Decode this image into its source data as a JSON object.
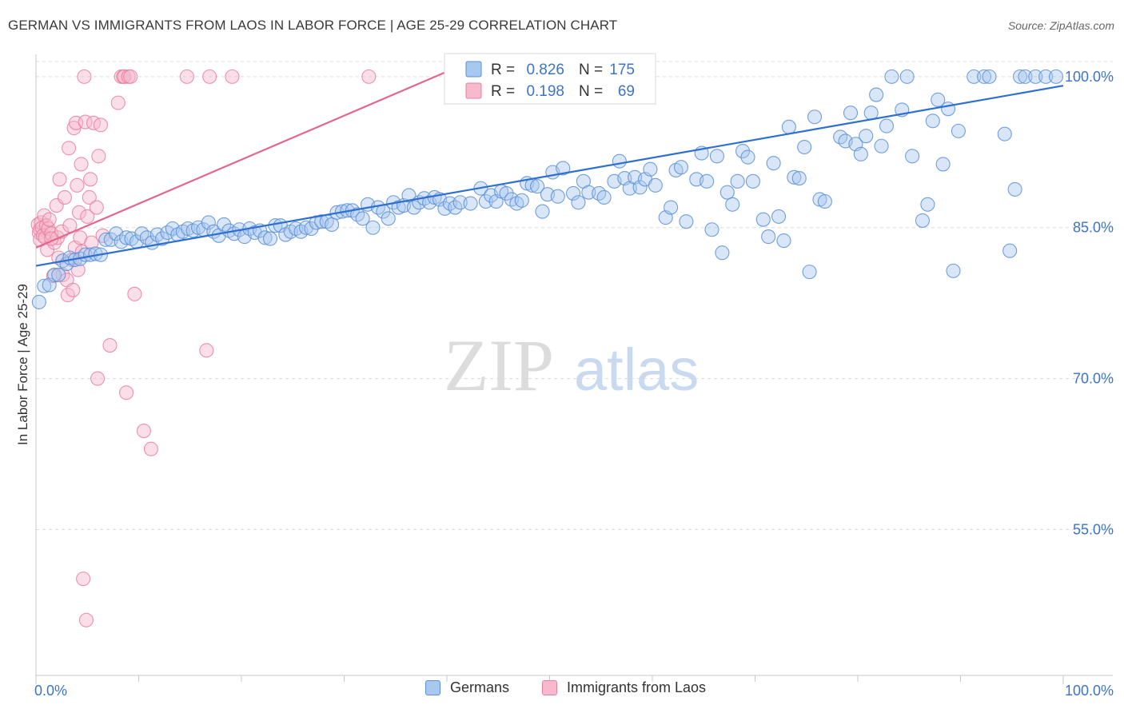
{
  "title": "GERMAN VS IMMIGRANTS FROM LAOS IN LABOR FORCE | AGE 25-29 CORRELATION CHART",
  "source": "Source: ZipAtlas.com",
  "watermark": {
    "zip": "ZIP",
    "atlas": "atlas"
  },
  "colors": {
    "blue_fill": "#a9c8f0",
    "blue_stroke": "#5b8fd6",
    "blue_line": "#2f6fd0",
    "pink_fill": "#f7b9cc",
    "pink_stroke": "#e97fa0",
    "pink_line": "#e2668e",
    "axis_text": "#3d74c9",
    "grid": "#dcdcdc"
  },
  "legend_stats": [
    {
      "r_label": "R =",
      "r_value": "0.826",
      "n_label": "N =",
      "n_value": "175",
      "color": "blue"
    },
    {
      "r_label": "R =",
      "r_value": "0.198",
      "n_label": "N =",
      "n_value": "69",
      "color": "pink"
    }
  ],
  "legend_bottom": [
    "Germans",
    "Immigrants from Laos"
  ],
  "chart_data": {
    "type": "scatter",
    "xlabel": "",
    "ylabel": "In Labor Force | Age 25-29",
    "x_tick_labels": [
      "0.0%",
      "100.0%"
    ],
    "y_tick_labels": [
      "100.0%",
      "85.0%",
      "70.0%",
      "55.0%"
    ],
    "y_ticks": [
      100,
      85,
      70,
      55
    ],
    "xlim": [
      0,
      100
    ],
    "ylim": [
      40.5,
      101.5
    ],
    "grid": true,
    "series": [
      {
        "name": "Germans",
        "color": "blue",
        "trend": {
          "x": [
            0,
            100
          ],
          "y": [
            81.2,
            99.1
          ]
        },
        "points": [
          [
            0.3,
            77.6
          ],
          [
            0.8,
            79.2
          ],
          [
            1.3,
            79.3
          ],
          [
            1.8,
            80.3
          ],
          [
            2.2,
            80.3
          ],
          [
            2.6,
            81.7
          ],
          [
            3.0,
            81.4
          ],
          [
            3.3,
            82.0
          ],
          [
            3.8,
            81.8
          ],
          [
            4.3,
            81.9
          ],
          [
            4.8,
            82.3
          ],
          [
            5.3,
            82.3
          ],
          [
            5.8,
            82.4
          ],
          [
            6.3,
            82.3
          ],
          [
            6.8,
            83.8
          ],
          [
            7.3,
            83.8
          ],
          [
            7.8,
            84.4
          ],
          [
            8.3,
            83.6
          ],
          [
            8.8,
            84.0
          ],
          [
            9.3,
            83.9
          ],
          [
            9.8,
            83.6
          ],
          [
            10.3,
            84.4
          ],
          [
            10.8,
            84.0
          ],
          [
            11.3,
            83.5
          ],
          [
            11.8,
            84.3
          ],
          [
            12.3,
            83.9
          ],
          [
            12.8,
            84.5
          ],
          [
            13.3,
            84.9
          ],
          [
            13.8,
            84.3
          ],
          [
            14.3,
            84.6
          ],
          [
            14.8,
            84.9
          ],
          [
            15.3,
            84.7
          ],
          [
            15.8,
            85.0
          ],
          [
            16.3,
            84.8
          ],
          [
            16.8,
            85.5
          ],
          [
            17.3,
            84.6
          ],
          [
            17.8,
            84.2
          ],
          [
            18.3,
            85.3
          ],
          [
            18.8,
            84.7
          ],
          [
            19.3,
            84.4
          ],
          [
            19.8,
            84.8
          ],
          [
            20.3,
            84.1
          ],
          [
            20.8,
            84.9
          ],
          [
            21.3,
            84.5
          ],
          [
            21.8,
            84.7
          ],
          [
            22.3,
            84.0
          ],
          [
            22.8,
            83.9
          ],
          [
            23.3,
            85.2
          ],
          [
            23.8,
            85.2
          ],
          [
            24.3,
            84.3
          ],
          [
            24.8,
            84.6
          ],
          [
            25.3,
            84.9
          ],
          [
            25.8,
            84.6
          ],
          [
            26.3,
            85.0
          ],
          [
            26.8,
            84.9
          ],
          [
            27.3,
            85.5
          ],
          [
            27.8,
            85.6
          ],
          [
            28.3,
            85.6
          ],
          [
            28.8,
            85.3
          ],
          [
            29.3,
            86.5
          ],
          [
            29.8,
            86.6
          ],
          [
            30.3,
            86.7
          ],
          [
            30.8,
            86.7
          ],
          [
            31.3,
            86.3
          ],
          [
            31.8,
            85.9
          ],
          [
            32.3,
            87.3
          ],
          [
            32.8,
            85.0
          ],
          [
            33.3,
            87.0
          ],
          [
            33.8,
            86.6
          ],
          [
            34.3,
            85.9
          ],
          [
            34.8,
            87.5
          ],
          [
            35.3,
            87.0
          ],
          [
            35.8,
            87.2
          ],
          [
            36.3,
            88.2
          ],
          [
            36.8,
            87.0
          ],
          [
            37.3,
            87.5
          ],
          [
            37.8,
            87.9
          ],
          [
            38.3,
            87.5
          ],
          [
            38.8,
            88.0
          ],
          [
            39.3,
            87.8
          ],
          [
            39.8,
            86.9
          ],
          [
            40.3,
            87.4
          ],
          [
            40.8,
            87.0
          ],
          [
            41.3,
            87.5
          ],
          [
            42.3,
            87.4
          ],
          [
            43.3,
            88.9
          ],
          [
            43.8,
            87.6
          ],
          [
            44.3,
            88.2
          ],
          [
            44.8,
            87.6
          ],
          [
            45.3,
            88.6
          ],
          [
            45.8,
            88.4
          ],
          [
            46.3,
            87.8
          ],
          [
            46.8,
            87.4
          ],
          [
            47.3,
            87.7
          ],
          [
            47.8,
            89.4
          ],
          [
            48.3,
            89.2
          ],
          [
            48.8,
            89.1
          ],
          [
            49.3,
            86.6
          ],
          [
            49.8,
            88.3
          ],
          [
            50.3,
            90.5
          ],
          [
            50.8,
            88.1
          ],
          [
            51.3,
            90.9
          ],
          [
            52.3,
            88.4
          ],
          [
            52.8,
            87.5
          ],
          [
            53.3,
            89.6
          ],
          [
            53.8,
            88.5
          ],
          [
            54.8,
            88.4
          ],
          [
            55.3,
            88.0
          ],
          [
            56.3,
            89.6
          ],
          [
            56.8,
            91.6
          ],
          [
            57.3,
            89.9
          ],
          [
            57.8,
            88.9
          ],
          [
            58.3,
            90.0
          ],
          [
            58.8,
            89.0
          ],
          [
            59.3,
            89.8
          ],
          [
            59.8,
            90.8
          ],
          [
            60.3,
            89.2
          ],
          [
            61.3,
            86.0
          ],
          [
            61.8,
            87.0
          ],
          [
            62.3,
            90.7
          ],
          [
            62.8,
            91.0
          ],
          [
            63.3,
            85.6
          ],
          [
            64.3,
            89.8
          ],
          [
            64.8,
            92.4
          ],
          [
            65.3,
            89.6
          ],
          [
            65.8,
            84.8
          ],
          [
            66.3,
            92.1
          ],
          [
            66.8,
            82.5
          ],
          [
            67.3,
            88.5
          ],
          [
            67.8,
            87.3
          ],
          [
            68.3,
            89.6
          ],
          [
            68.8,
            92.6
          ],
          [
            69.3,
            92.0
          ],
          [
            69.8,
            89.6
          ],
          [
            70.8,
            85.8
          ],
          [
            71.3,
            84.1
          ],
          [
            71.8,
            91.4
          ],
          [
            72.3,
            86.1
          ],
          [
            72.8,
            83.7
          ],
          [
            73.3,
            95.0
          ],
          [
            73.8,
            90.0
          ],
          [
            74.3,
            89.9
          ],
          [
            74.8,
            93.0
          ],
          [
            75.3,
            80.6
          ],
          [
            75.8,
            96.0
          ],
          [
            76.3,
            87.8
          ],
          [
            76.8,
            87.6
          ],
          [
            78.3,
            94.0
          ],
          [
            78.8,
            93.6
          ],
          [
            79.3,
            96.4
          ],
          [
            79.8,
            93.3
          ],
          [
            80.3,
            92.3
          ],
          [
            80.8,
            94.1
          ],
          [
            81.3,
            96.4
          ],
          [
            81.8,
            98.2
          ],
          [
            82.3,
            93.1
          ],
          [
            82.8,
            95.1
          ],
          [
            83.3,
            100.0
          ],
          [
            84.3,
            96.7
          ],
          [
            84.8,
            100.0
          ],
          [
            85.3,
            92.1
          ],
          [
            86.3,
            85.7
          ],
          [
            86.8,
            87.3
          ],
          [
            87.3,
            95.6
          ],
          [
            87.8,
            97.7
          ],
          [
            88.3,
            91.3
          ],
          [
            88.8,
            96.8
          ],
          [
            89.3,
            80.7
          ],
          [
            89.8,
            94.6
          ],
          [
            91.3,
            100.0
          ],
          [
            92.3,
            100.0
          ],
          [
            92.8,
            100.0
          ],
          [
            94.3,
            94.3
          ],
          [
            94.8,
            82.7
          ],
          [
            95.3,
            88.8
          ],
          [
            95.8,
            100.0
          ],
          [
            96.3,
            100.0
          ],
          [
            97.3,
            100.0
          ],
          [
            98.3,
            100.0
          ],
          [
            99.3,
            100.0
          ]
        ]
      },
      {
        "name": "Immigrants from Laos",
        "color": "pink",
        "trend": {
          "x": [
            0,
            40
          ],
          "y": [
            83.0,
            100.5
          ]
        },
        "points": [
          [
            0.2,
            85.3
          ],
          [
            0.3,
            84.5
          ],
          [
            0.4,
            84.8
          ],
          [
            0.4,
            83.8
          ],
          [
            0.5,
            85.5
          ],
          [
            0.6,
            85.0
          ],
          [
            0.7,
            84.2
          ],
          [
            0.8,
            86.2
          ],
          [
            0.9,
            84.0
          ],
          [
            1.0,
            85.2
          ],
          [
            1.1,
            82.8
          ],
          [
            1.2,
            84.9
          ],
          [
            1.3,
            85.8
          ],
          [
            1.5,
            84.4
          ],
          [
            1.7,
            80.2
          ],
          [
            1.8,
            83.5
          ],
          [
            2.0,
            87.2
          ],
          [
            2.1,
            84.0
          ],
          [
            2.3,
            89.8
          ],
          [
            2.5,
            84.6
          ],
          [
            2.6,
            80.3
          ],
          [
            2.8,
            88.0
          ],
          [
            3.0,
            79.8
          ],
          [
            3.1,
            78.3
          ],
          [
            3.2,
            92.9
          ],
          [
            3.3,
            85.2
          ],
          [
            3.5,
            81.8
          ],
          [
            3.6,
            78.8
          ],
          [
            3.7,
            94.9
          ],
          [
            3.8,
            83.0
          ],
          [
            3.9,
            95.4
          ],
          [
            4.0,
            89.2
          ],
          [
            4.1,
            80.8
          ],
          [
            4.2,
            86.5
          ],
          [
            4.3,
            84.0
          ],
          [
            4.4,
            91.3
          ],
          [
            4.5,
            82.6
          ],
          [
            4.6,
            50.1
          ],
          [
            4.7,
            100.0
          ],
          [
            4.8,
            95.5
          ],
          [
            4.9,
            46.0
          ],
          [
            5.0,
            86.1
          ],
          [
            5.2,
            88.0
          ],
          [
            5.3,
            89.8
          ],
          [
            5.4,
            83.5
          ],
          [
            5.6,
            95.4
          ],
          [
            5.9,
            87.0
          ],
          [
            6.0,
            70.0
          ],
          [
            6.1,
            92.1
          ],
          [
            6.3,
            95.2
          ],
          [
            6.5,
            84.2
          ],
          [
            7.2,
            73.3
          ],
          [
            8.0,
            97.4
          ],
          [
            8.3,
            100.0
          ],
          [
            8.5,
            100.0
          ],
          [
            8.6,
            100.0
          ],
          [
            8.8,
            68.6
          ],
          [
            9.0,
            100.0
          ],
          [
            9.2,
            100.0
          ],
          [
            9.6,
            78.4
          ],
          [
            10.5,
            64.8
          ],
          [
            11.2,
            63.0
          ],
          [
            14.7,
            100.0
          ],
          [
            16.6,
            72.8
          ],
          [
            16.9,
            100.0
          ],
          [
            19.1,
            100.0
          ],
          [
            32.4,
            100.0
          ],
          [
            1.5,
            83.9
          ],
          [
            2.2,
            82.0
          ]
        ]
      }
    ]
  }
}
